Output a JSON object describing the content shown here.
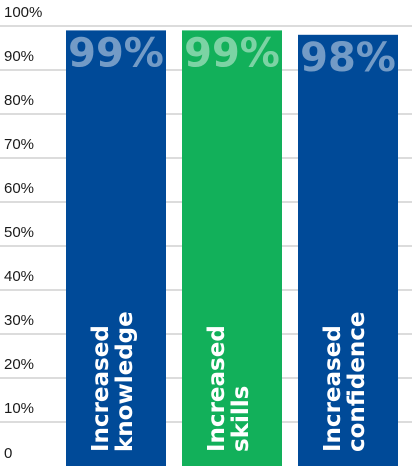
{
  "chart_data": {
    "type": "bar",
    "categories": [
      [
        "Increased",
        "knowledge"
      ],
      [
        "Increased",
        "skills"
      ],
      [
        "Increased",
        "confidence"
      ]
    ],
    "values": [
      99,
      99,
      98
    ],
    "value_labels": [
      "99%",
      "99%",
      "98%"
    ],
    "bar_colors": [
      "#004a98",
      "#12b05a",
      "#004a98"
    ],
    "ylim": [
      0,
      100
    ],
    "yticks": [
      {
        "value": 0,
        "label": "0"
      },
      {
        "value": 10,
        "label": "10%"
      },
      {
        "value": 20,
        "label": "20%"
      },
      {
        "value": 30,
        "label": "30%"
      },
      {
        "value": 40,
        "label": "40%"
      },
      {
        "value": 50,
        "label": "50%"
      },
      {
        "value": 60,
        "label": "60%"
      },
      {
        "value": 70,
        "label": "70%"
      },
      {
        "value": 80,
        "label": "80%"
      },
      {
        "value": 90,
        "label": "90%"
      },
      {
        "value": 100,
        "label": "100%"
      }
    ],
    "grid": true,
    "title": "",
    "xlabel": "",
    "ylabel": ""
  }
}
